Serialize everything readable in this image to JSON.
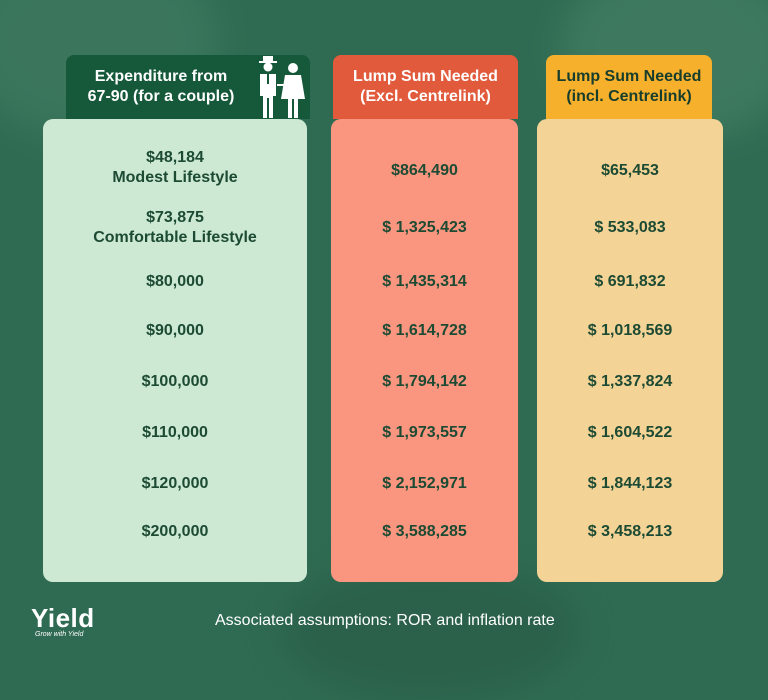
{
  "header": {
    "col1": [
      "Expenditure from",
      "67-90 (for a couple)"
    ],
    "col2": [
      "Lump Sum Needed",
      "(Excl. Centrelink)"
    ],
    "col3": [
      "Lump Sum Needed",
      "(incl. Centrelink)"
    ]
  },
  "rows": [
    {
      "expenditure": [
        "$48,184",
        "Modest Lifestyle"
      ],
      "excl": "$864,490",
      "incl": "$65,453"
    },
    {
      "expenditure": [
        "$73,875",
        "Comfortable Lifestyle"
      ],
      "excl": "$ 1,325,423",
      "incl": "$ 533,083"
    },
    {
      "expenditure": [
        "$80,000"
      ],
      "excl": "$ 1,435,314",
      "incl": "$ 691,832"
    },
    {
      "expenditure": [
        "$90,000"
      ],
      "excl": "$ 1,614,728",
      "incl": "$ 1,018,569"
    },
    {
      "expenditure": [
        "$100,000"
      ],
      "excl": "$ 1,794,142",
      "incl": "$ 1,337,824"
    },
    {
      "expenditure": [
        "$110,000"
      ],
      "excl": "$ 1,973,557",
      "incl": "$ 1,604,522"
    },
    {
      "expenditure": [
        "$120,000"
      ],
      "excl": "$ 2,152,971",
      "incl": "$ 1,844,123"
    },
    {
      "expenditure": [
        "$200,000"
      ],
      "excl": "$ 3,588,285",
      "incl": "$ 3,458,213"
    }
  ],
  "footer": {
    "logo": "Yield",
    "tagline": "Grow with Yield",
    "note": "Associated assumptions: ROR and inflation rate"
  },
  "icons": {
    "couple": "elderly-couple-icon"
  },
  "colors": {
    "background": "#2f6b52",
    "header1": "#16593a",
    "column1": "#cde9d3",
    "header2": "#e15a3c",
    "column2": "#fa9680",
    "header3": "#f6b02c",
    "column3": "#f4d496",
    "text": "#1c4a33"
  }
}
